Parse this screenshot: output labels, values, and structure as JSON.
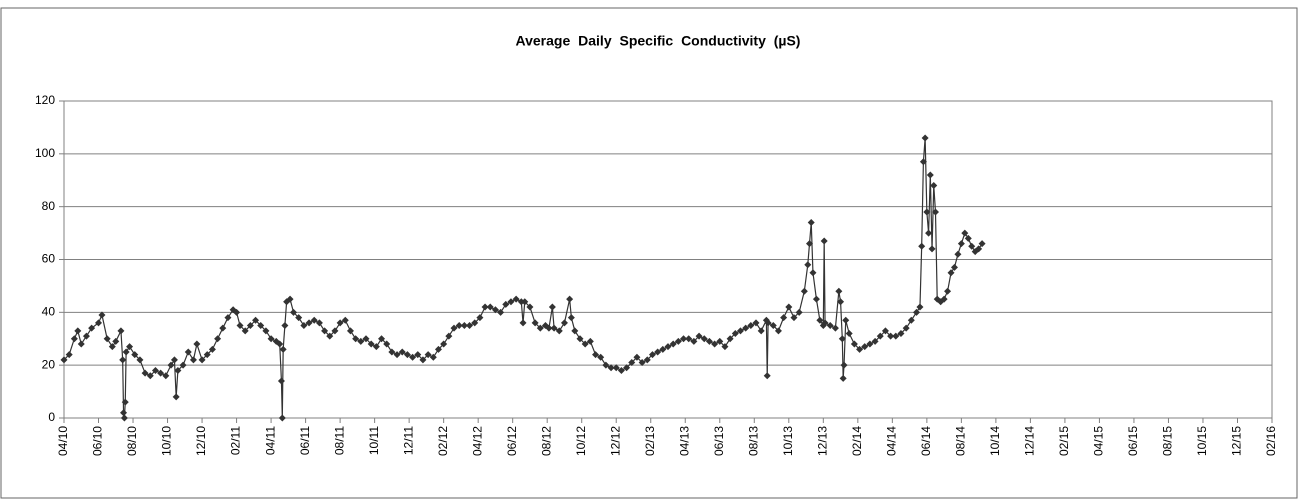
{
  "chart_data": {
    "type": "line",
    "title": "Average Daily Specific Conductivity (µS)",
    "color": "#333333",
    "grid": true,
    "xlim": [
      0,
      70
    ],
    "xticks": [
      {
        "value": 0,
        "label": "04/10"
      },
      {
        "value": 2,
        "label": "06/10"
      },
      {
        "value": 4,
        "label": "08/10"
      },
      {
        "value": 6,
        "label": "10/10"
      },
      {
        "value": 8,
        "label": "12/10"
      },
      {
        "value": 10,
        "label": "02/11"
      },
      {
        "value": 12,
        "label": "04/11"
      },
      {
        "value": 14,
        "label": "06/11"
      },
      {
        "value": 16,
        "label": "08/11"
      },
      {
        "value": 18,
        "label": "10/11"
      },
      {
        "value": 20,
        "label": "12/11"
      },
      {
        "value": 22,
        "label": "02/12"
      },
      {
        "value": 24,
        "label": "04/12"
      },
      {
        "value": 26,
        "label": "06/12"
      },
      {
        "value": 28,
        "label": "08/12"
      },
      {
        "value": 30,
        "label": "10/12"
      },
      {
        "value": 32,
        "label": "12/12"
      },
      {
        "value": 34,
        "label": "02/13"
      },
      {
        "value": 36,
        "label": "04/13"
      },
      {
        "value": 38,
        "label": "06/13"
      },
      {
        "value": 40,
        "label": "08/13"
      },
      {
        "value": 42,
        "label": "10/13"
      },
      {
        "value": 44,
        "label": "12/13"
      },
      {
        "value": 46,
        "label": "02/14"
      },
      {
        "value": 48,
        "label": "04/14"
      },
      {
        "value": 50,
        "label": "06/14"
      },
      {
        "value": 52,
        "label": "08/14"
      },
      {
        "value": 54,
        "label": "10/14"
      },
      {
        "value": 56,
        "label": "12/14"
      },
      {
        "value": 58,
        "label": "02/15"
      },
      {
        "value": 60,
        "label": "04/15"
      },
      {
        "value": 62,
        "label": "06/15"
      },
      {
        "value": 64,
        "label": "08/15"
      },
      {
        "value": 66,
        "label": "10/15"
      },
      {
        "value": 68,
        "label": "12/15"
      },
      {
        "value": 70,
        "label": "02/16"
      }
    ],
    "ylim": [
      0,
      120
    ],
    "yticks": [
      0,
      20,
      40,
      60,
      80,
      100,
      120
    ],
    "x": [
      0,
      0.3,
      0.6,
      0.8,
      1.0,
      1.3,
      1.6,
      2.0,
      2.2,
      2.5,
      2.8,
      3.0,
      3.3,
      3.4,
      3.45,
      3.5,
      3.55,
      3.6,
      3.8,
      4.1,
      4.4,
      4.7,
      5.0,
      5.3,
      5.6,
      5.9,
      6.2,
      6.4,
      6.5,
      6.6,
      6.9,
      7.2,
      7.5,
      7.7,
      8.0,
      8.3,
      8.6,
      8.9,
      9.2,
      9.5,
      9.8,
      10.0,
      10.2,
      10.5,
      10.8,
      11.1,
      11.4,
      11.7,
      12.0,
      12.3,
      12.5,
      12.6,
      12.65,
      12.7,
      12.8,
      12.9,
      13.1,
      13.3,
      13.6,
      13.9,
      14.2,
      14.5,
      14.8,
      15.1,
      15.4,
      15.7,
      16.0,
      16.3,
      16.6,
      16.9,
      17.2,
      17.5,
      17.8,
      18.1,
      18.4,
      18.7,
      19.0,
      19.3,
      19.6,
      19.9,
      20.2,
      20.5,
      20.8,
      21.1,
      21.4,
      21.7,
      22.0,
      22.3,
      22.6,
      22.9,
      23.2,
      23.5,
      23.8,
      24.1,
      24.4,
      24.7,
      25.0,
      25.3,
      25.6,
      25.9,
      26.2,
      26.5,
      26.6,
      26.7,
      27.0,
      27.3,
      27.6,
      27.9,
      28.1,
      28.3,
      28.4,
      28.7,
      29.0,
      29.3,
      29.4,
      29.6,
      29.9,
      30.2,
      30.5,
      30.8,
      31.1,
      31.4,
      31.7,
      32.0,
      32.3,
      32.6,
      32.9,
      33.2,
      33.5,
      33.8,
      34.1,
      34.4,
      34.7,
      35.0,
      35.3,
      35.6,
      35.9,
      36.2,
      36.5,
      36.8,
      37.1,
      37.4,
      37.7,
      38.0,
      38.3,
      38.6,
      38.9,
      39.2,
      39.5,
      39.8,
      40.1,
      40.4,
      40.7,
      40.75,
      40.8,
      41.1,
      41.4,
      41.7,
      42.0,
      42.3,
      42.6,
      42.9,
      43.1,
      43.2,
      43.3,
      43.4,
      43.6,
      43.8,
      44.0,
      44.05,
      44.1,
      44.4,
      44.7,
      44.9,
      45.0,
      45.1,
      45.15,
      45.2,
      45.3,
      45.5,
      45.8,
      46.1,
      46.4,
      46.7,
      47.0,
      47.3,
      47.6,
      47.9,
      48.2,
      48.5,
      48.8,
      49.1,
      49.4,
      49.6,
      49.7,
      49.8,
      49.9,
      50.0,
      50.1,
      50.2,
      50.3,
      50.4,
      50.5,
      50.6,
      50.8,
      51.0,
      51.2,
      51.4,
      51.6,
      51.8,
      52.0,
      52.2,
      52.4,
      52.6,
      52.8,
      53.0,
      53.2
    ],
    "values": [
      22,
      24,
      30,
      33,
      28,
      31,
      34,
      36,
      39,
      30,
      27,
      29,
      33,
      22,
      2,
      0,
      6,
      25,
      27,
      24,
      22,
      17,
      16,
      18,
      17,
      16,
      20,
      22,
      8,
      18,
      20,
      25,
      22,
      28,
      22,
      24,
      26,
      30,
      34,
      38,
      41,
      40,
      35,
      33,
      35,
      37,
      35,
      33,
      30,
      29,
      28,
      14,
      0,
      26,
      35,
      44,
      45,
      40,
      38,
      35,
      36,
      37,
      36,
      33,
      31,
      33,
      36,
      37,
      33,
      30,
      29,
      30,
      28,
      27,
      30,
      28,
      25,
      24,
      25,
      24,
      23,
      24,
      22,
      24,
      23,
      26,
      28,
      31,
      34,
      35,
      35,
      35,
      36,
      38,
      42,
      42,
      41,
      40,
      43,
      44,
      45,
      44,
      36,
      44,
      42,
      36,
      34,
      35,
      34,
      42,
      34,
      33,
      36,
      45,
      38,
      33,
      30,
      28,
      29,
      24,
      23,
      20,
      19,
      19,
      18,
      19,
      21,
      23,
      21,
      22,
      24,
      25,
      26,
      27,
      28,
      29,
      30,
      30,
      29,
      31,
      30,
      29,
      28,
      29,
      27,
      30,
      32,
      33,
      34,
      35,
      36,
      33,
      37,
      16,
      36,
      35,
      33,
      38,
      42,
      38,
      40,
      48,
      58,
      66,
      74,
      55,
      45,
      37,
      35,
      67,
      36,
      35,
      34,
      48,
      44,
      30,
      15,
      20,
      37,
      32,
      28,
      26,
      27,
      28,
      29,
      31,
      33,
      31,
      31,
      32,
      34,
      37,
      40,
      42,
      65,
      97,
      106,
      78,
      70,
      92,
      64,
      88,
      78,
      45,
      44,
      45,
      48,
      55,
      57,
      62,
      66,
      70,
      68,
      65,
      63,
      64,
      66
    ]
  }
}
